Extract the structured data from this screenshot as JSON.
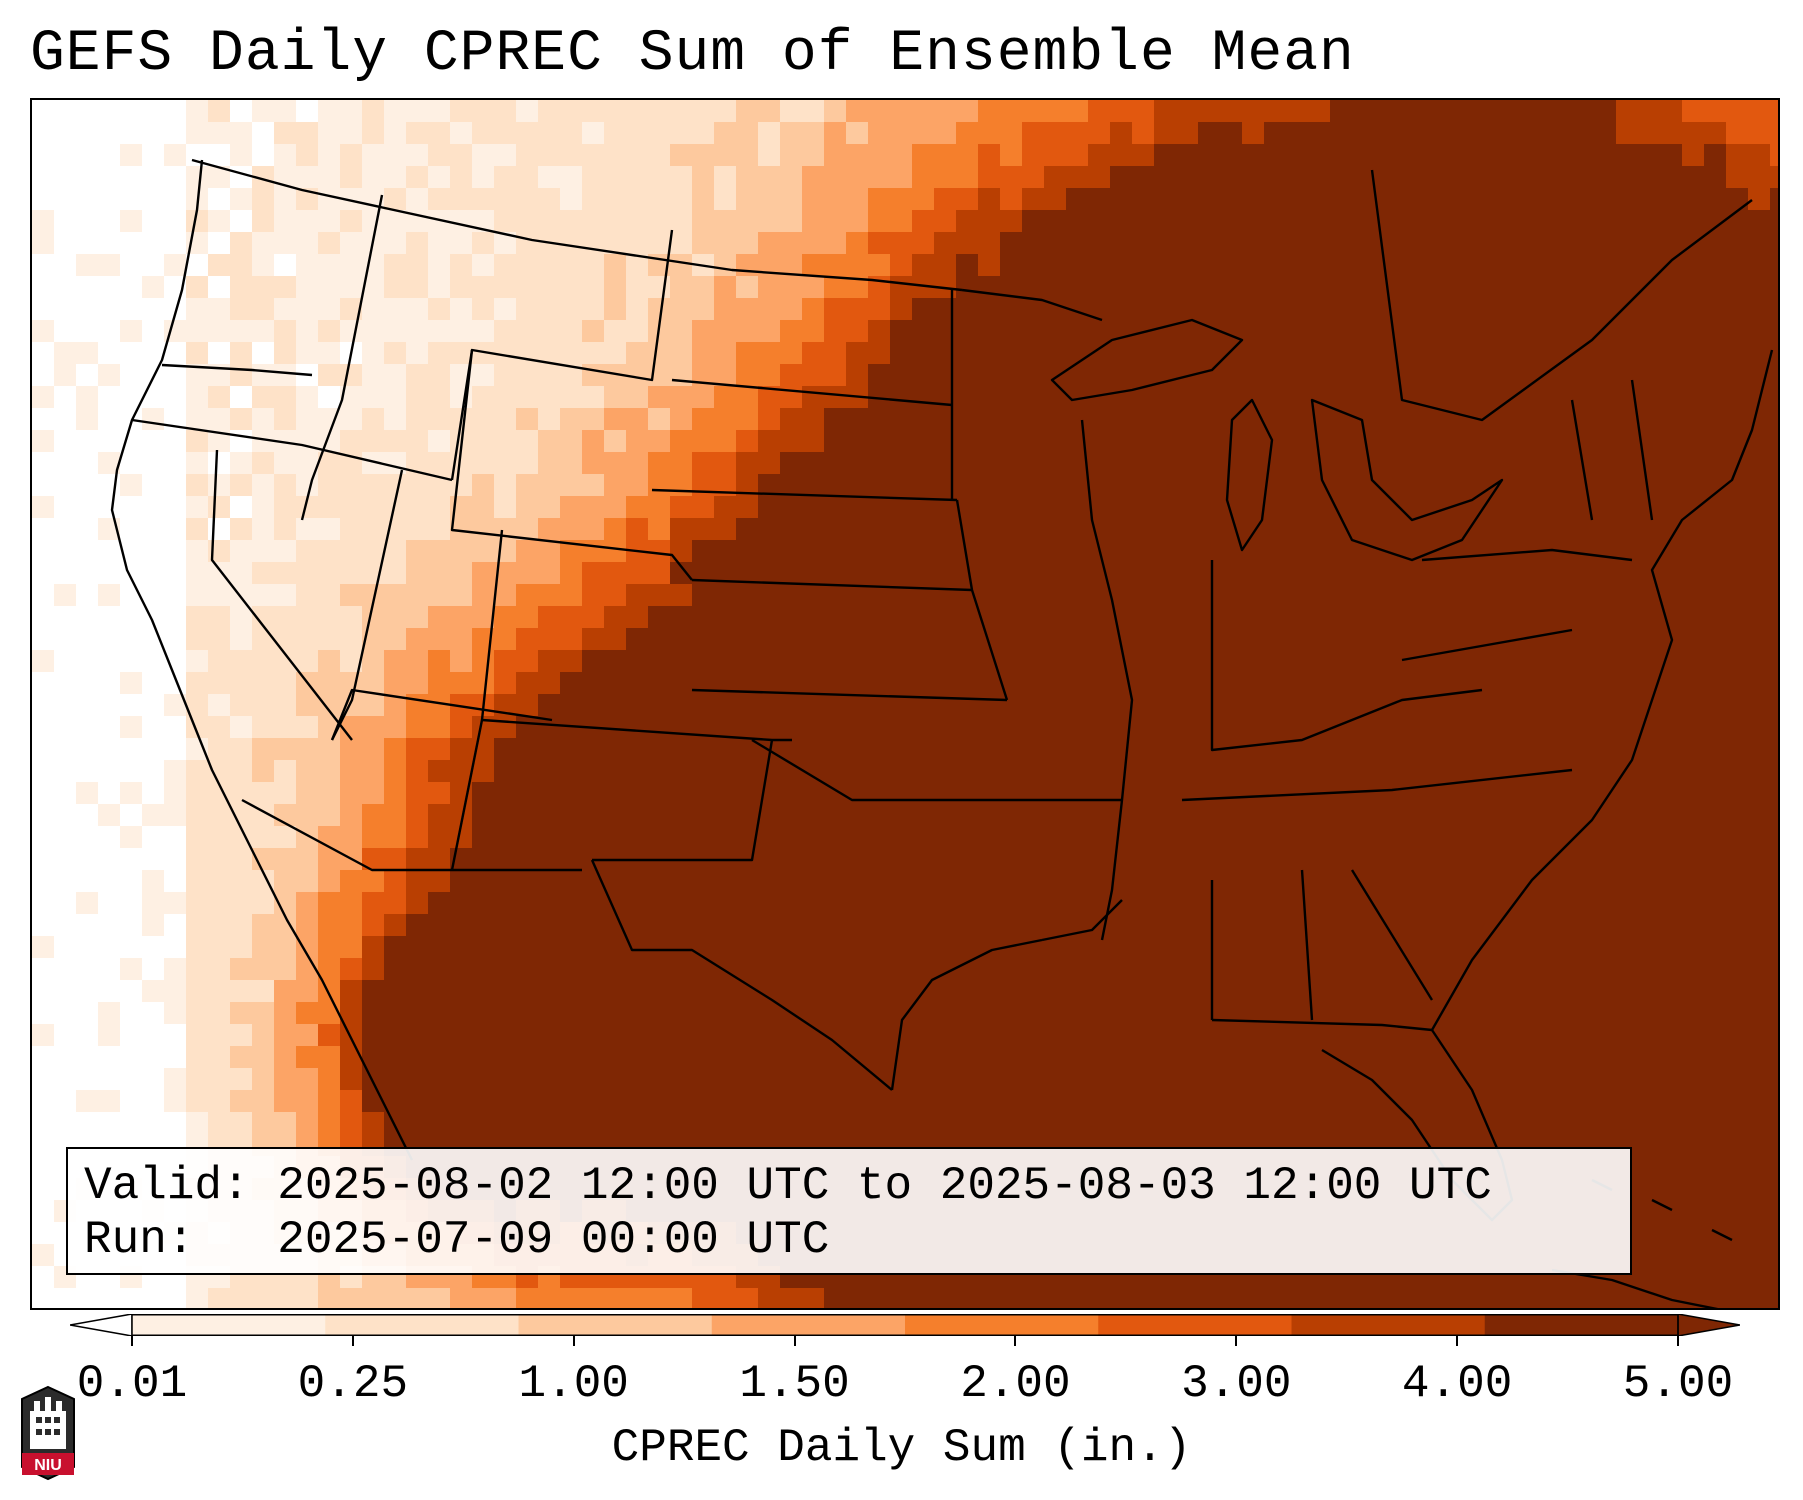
{
  "title": "GEFS Daily CPREC Sum of Ensemble Mean",
  "info": {
    "valid_line": "Valid: 2025-08-02 12:00 UTC to 2025-08-03 12:00 UTC",
    "run_line": "Run:   2025-07-09 00:00 UTC"
  },
  "colorbar": {
    "label": "CPREC Daily Sum (in.)",
    "ticks": [
      "0.01",
      "0.25",
      "1.00",
      "1.50",
      "2.00",
      "3.00",
      "4.00",
      "5.00"
    ],
    "colors": [
      "#fef0e3",
      "#fee2c8",
      "#fdc99e",
      "#fca466",
      "#f57f2c",
      "#e2580f",
      "#b93f02",
      "#7f2704"
    ],
    "extend_low_color": "#ffffff",
    "extend_high_color": "#7f2704"
  },
  "logo": {
    "text": "NIU",
    "color": "#c8102e"
  }
}
